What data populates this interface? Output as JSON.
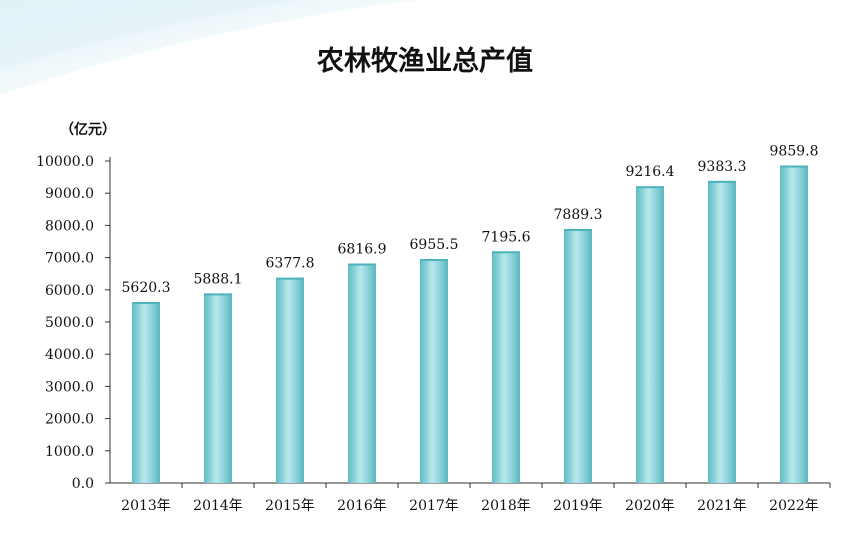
{
  "chart_data": {
    "type": "bar",
    "title": "农林牧渔业总产值",
    "unit_label": "（亿元）",
    "categories": [
      "2013年",
      "2014年",
      "2015年",
      "2016年",
      "2017年",
      "2018年",
      "2019年",
      "2020年",
      "2021年",
      "2022年"
    ],
    "values": [
      5620.3,
      5888.1,
      6377.8,
      6816.9,
      6955.5,
      7195.6,
      7889.3,
      9216.4,
      9383.3,
      9859.8
    ],
    "value_labels": [
      "5620.3",
      "5888.1",
      "6377.8",
      "6816.9",
      "6955.5",
      "7195.6",
      "7889.3",
      "9216.4",
      "9383.3",
      "9859.8"
    ],
    "yticks": [
      "0.0",
      "1000.0",
      "2000.0",
      "3000.0",
      "4000.0",
      "5000.0",
      "6000.0",
      "7000.0",
      "8000.0",
      "9000.0",
      "10000.0"
    ],
    "ylim": [
      0,
      10000
    ],
    "grid": false,
    "colors": {
      "bar": "#7ccfd5",
      "bar_light": "#b4e6ea",
      "bar_dark": "#4fb3bc",
      "axis": "#333333"
    }
  }
}
